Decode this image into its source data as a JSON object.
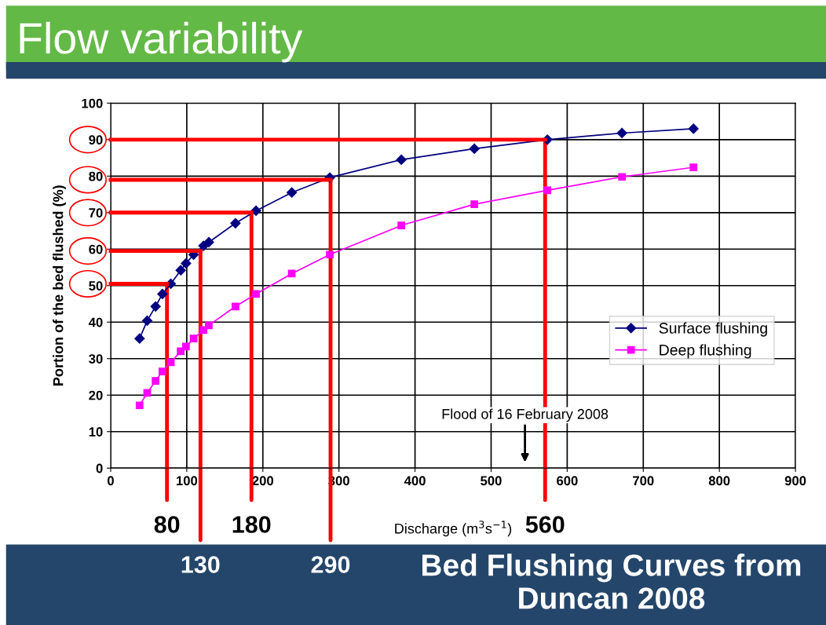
{
  "chart_data": {
    "type": "line",
    "title": "Flow variability",
    "xlabel": "Discharge (m$^{3}$s$^{−1}$)",
    "ylabel": "Portion of the bed flushed (%)",
    "x": [
      38,
      48,
      59,
      68,
      79,
      92,
      99,
      109,
      122,
      129,
      164,
      191,
      238,
      288,
      382,
      478,
      574,
      672,
      766
    ],
    "series": [
      {
        "name": "Surface flushing",
        "color": "#000080",
        "marker": "diamond",
        "values": [
          35.5,
          40.4,
          44.3,
          47.7,
          50.5,
          54.2,
          56.1,
          58.5,
          60.9,
          61.9,
          67.1,
          70.5,
          75.5,
          79.6,
          84.5,
          87.5,
          90,
          91.8,
          93
        ]
      },
      {
        "name": "Deep flushing",
        "color": "#ff00ff",
        "marker": "square",
        "values": [
          17.2,
          20.6,
          23.9,
          26.5,
          29,
          32,
          33.3,
          35.5,
          37.8,
          39.1,
          44.3,
          47.7,
          53.3,
          58.5,
          66.5,
          72.3,
          76.1,
          79.8,
          82.4
        ]
      },
      {
        "color": "#ff0000",
        "marker": "none",
        "x": [
          0,
          74
        ],
        "values": [
          50.5,
          50.5
        ]
      },
      {
        "color": "#ff0000",
        "marker": "none",
        "x": [
          0,
          118
        ],
        "values": [
          59.5,
          59.5
        ]
      },
      {
        "color": "#ff0000",
        "marker": "none",
        "x": [
          0,
          185
        ],
        "values": [
          70,
          70
        ]
      },
      {
        "color": "#ff0000",
        "marker": "none",
        "x": [
          0,
          289
        ],
        "values": [
          79,
          79
        ]
      },
      {
        "color": "#ff0000",
        "marker": "none",
        "x": [
          0,
          571
        ],
        "values": [
          90,
          90
        ]
      }
    ],
    "xlim": [
      0,
      900
    ],
    "xticks": [
      0,
      100,
      200,
      300,
      400,
      500,
      600,
      700,
      800,
      900
    ],
    "ylim": [
      0,
      100
    ],
    "yticks": [
      0,
      10,
      20,
      30,
      40,
      50,
      60,
      70,
      80,
      90,
      100
    ],
    "grid": true,
    "legend": "right",
    "annotations": [
      {
        "text": "80",
        "x": 74,
        "y": 50.5
      },
      {
        "text": "130",
        "x": 118,
        "y": 59.5
      },
      {
        "text": "180",
        "x": 185,
        "y": 70
      },
      {
        "text": "290",
        "x": 289,
        "y": 79
      },
      {
        "text": "560",
        "x": 571,
        "y": 90
      },
      "Flood of 16 February 2008",
      "Bed Flushing Curves from Duncan 2008"
    ]
  }
}
